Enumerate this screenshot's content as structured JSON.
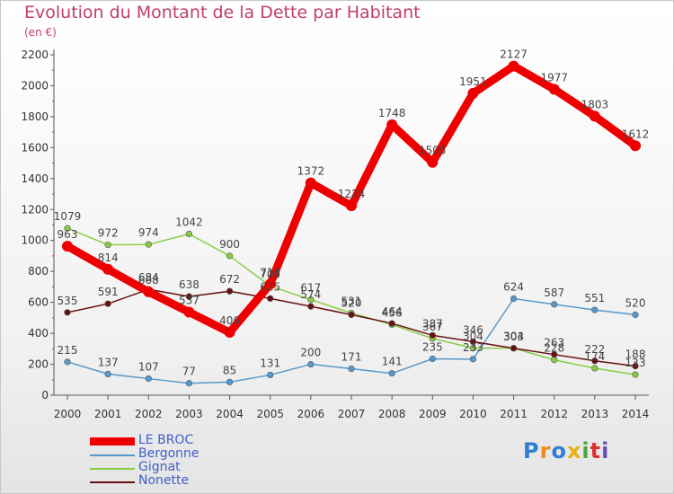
{
  "header": {
    "title": "Evolution du Montant de la Dette par Habitant",
    "unit": "(en €)"
  },
  "chart_data": {
    "type": "line",
    "title": "Evolution du Montant de la Dette par Habitant",
    "ylabel": "(en €)",
    "xlabel": "",
    "ylim": [
      0,
      2200
    ],
    "yticks": [
      0,
      200,
      400,
      600,
      800,
      1000,
      1200,
      1400,
      1600,
      1800,
      2000,
      2200
    ],
    "categories": [
      "2000",
      "2001",
      "2002",
      "2003",
      "2004",
      "2005",
      "2006",
      "2007",
      "2008",
      "2009",
      "2010",
      "2011",
      "2012",
      "2013",
      "2014"
    ],
    "grid": false,
    "legend_position": "bottom-left",
    "series": [
      {
        "name": "LE BROC",
        "color": "#ee0000",
        "values": [
          963,
          814,
          668,
          537,
          406,
          718,
          1372,
          1224,
          1748,
          1505,
          1951,
          2127,
          1977,
          1803,
          1612
        ]
      },
      {
        "name": "Bergonne",
        "color": "#5599cc",
        "values": [
          215,
          137,
          107,
          77,
          85,
          131,
          200,
          171,
          141,
          235,
          233,
          624,
          587,
          551,
          520
        ]
      },
      {
        "name": "Gignat",
        "color": "#88cc44",
        "values": [
          1079,
          972,
          974,
          1042,
          900,
          705,
          617,
          531,
          456,
          367,
          304,
          304,
          228,
          174,
          133
        ]
      },
      {
        "name": "Nonette",
        "color": "#661111",
        "values": [
          535,
          591,
          684,
          638,
          672,
          625,
          574,
          520,
          464,
          387,
          346,
          303,
          263,
          222,
          188
        ]
      }
    ]
  },
  "logo": {
    "text": "Proxiti"
  }
}
